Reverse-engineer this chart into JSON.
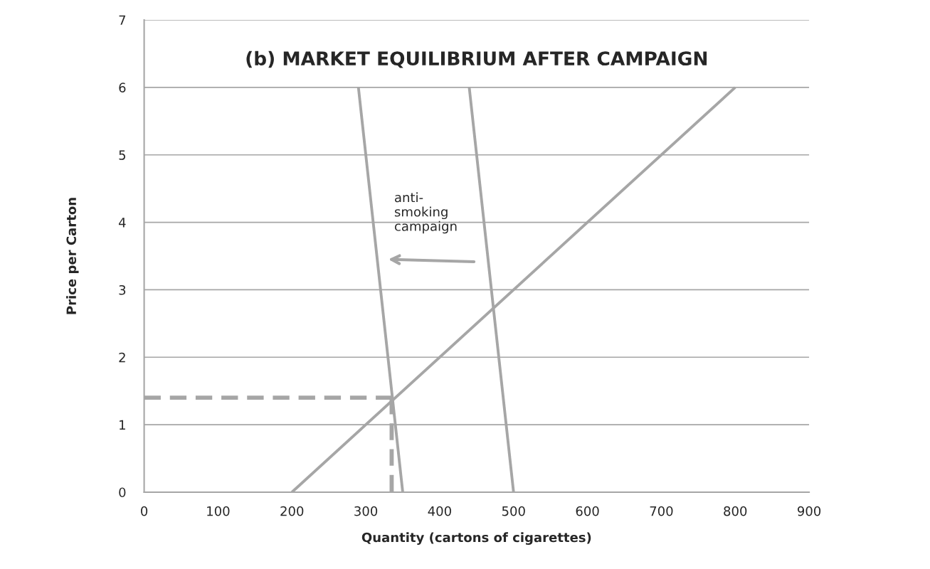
{
  "chart_data": {
    "type": "line",
    "title": "(b) MARKET EQUILIBRIUM AFTER CAMPAIGN",
    "xlabel": "Quantity (cartons of cigarettes)",
    "ylabel": "Price per Carton",
    "series": [
      {
        "color": "#a6a6a6",
        "x": [
          200,
          800
        ],
        "values": [
          0,
          6
        ]
      },
      {
        "color": "#a6a6a6",
        "x": [
          290,
          350
        ],
        "values": [
          6,
          0
        ]
      },
      {
        "color": "#a6a6a6",
        "x": [
          440,
          500
        ],
        "values": [
          6,
          0
        ]
      },
      {
        "color": "#a6a6a6",
        "x": [
          0,
          335
        ],
        "values": [
          1.4,
          1.4
        ],
        "line_style": "dashed"
      },
      {
        "color": "#a6a6a6",
        "x": [
          335,
          335
        ],
        "values": [
          1.4,
          0
        ],
        "line_style": "dashed"
      }
    ],
    "annotations": [
      "anti-\nsmoking\ncampaign"
    ],
    "xlim": [
      0,
      900
    ],
    "xticks": [
      0,
      100,
      200,
      300,
      400,
      500,
      600,
      700,
      800,
      900
    ],
    "ylim": [
      0,
      7
    ],
    "yticks": [
      0,
      1,
      2,
      3,
      4,
      5,
      6,
      7
    ],
    "grid": "y",
    "marker": "none",
    "line_style": "solid"
  }
}
